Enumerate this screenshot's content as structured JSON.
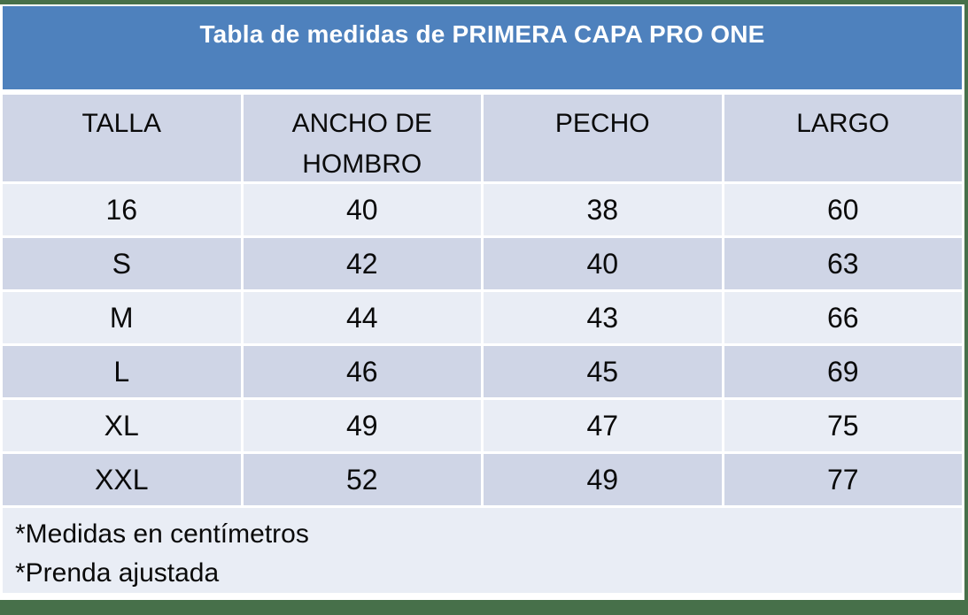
{
  "title": "Tabla de medidas de PRIMERA CAPA PRO ONE",
  "chart_data": {
    "type": "table",
    "title": "Tabla de medidas de PRIMERA CAPA PRO ONE",
    "columns": [
      "TALLA",
      "ANCHO DE HOMBRO",
      "PECHO",
      "LARGO"
    ],
    "rows": [
      [
        "16",
        "40",
        "38",
        "60"
      ],
      [
        "S",
        "42",
        "40",
        "63"
      ],
      [
        "M",
        "44",
        "43",
        "66"
      ],
      [
        "L",
        "46",
        "45",
        "69"
      ],
      [
        "XL",
        "49",
        "47",
        "75"
      ],
      [
        "XXL",
        "52",
        "49",
        "77"
      ]
    ],
    "notes": [
      "*Medidas en centímetros",
      "*Prenda ajustada"
    ]
  },
  "colors": {
    "frame_green": "#47704A",
    "title_blue": "#4E81BD",
    "header_row": "#CFD5E6",
    "row_dark": "#CFD5E6",
    "row_light": "#E9EDF5",
    "title_text": "#FFFFFF",
    "body_text": "#0A0A0A"
  }
}
